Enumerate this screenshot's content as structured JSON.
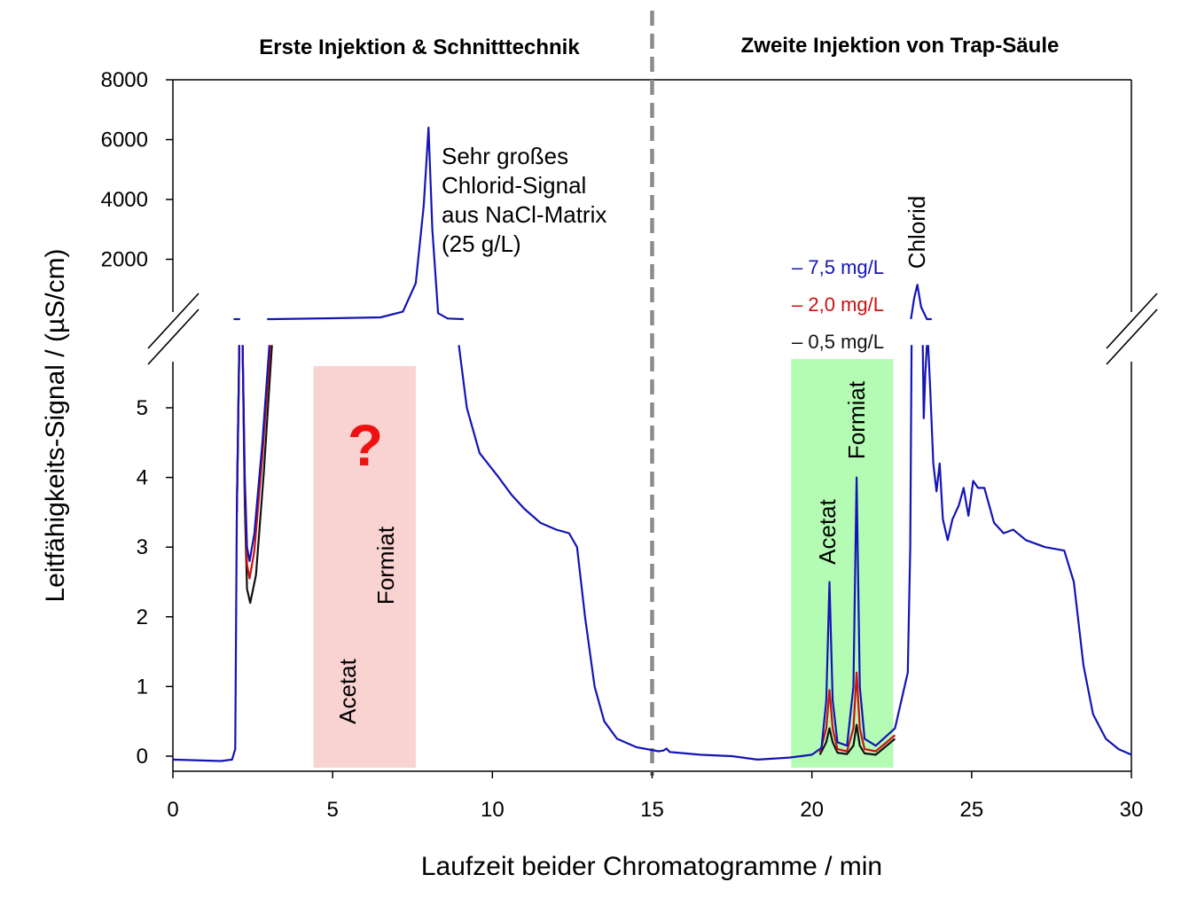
{
  "chart_data": {
    "type": "line",
    "title_left": "Erste Injektion & Schnitttechnik",
    "title_right": "Zweite Injektion von Trap-Säule",
    "xlabel": "Laufzeit beider Chromatogramme / min",
    "ylabel": "Leitfähigkeits-Signal / (µS/cm)",
    "xlim": [
      0,
      30
    ],
    "xticks": [
      "0",
      "5",
      "10",
      "15",
      "20",
      "25",
      "30"
    ],
    "ylim_lower": [
      -0.2,
      5.6
    ],
    "yticks_lower": [
      "0",
      "1",
      "2",
      "3",
      "4",
      "5"
    ],
    "ylim_upper": [
      0,
      8000
    ],
    "yticks_upper": [
      "2000",
      "4000",
      "6000",
      "8000"
    ],
    "divider_x": 15,
    "colors": {
      "blue": "#1414b4",
      "red": "#cc1111",
      "black": "#111111",
      "grey": "#8c8c8c",
      "pink": "#f9d2d2",
      "green": "#b4fcb4",
      "qmark": "#ee1111"
    },
    "regions": [
      {
        "name": "unknown-region",
        "x": [
          4.4,
          7.6
        ],
        "color": "#f9d2d2"
      },
      {
        "name": "analyte-region",
        "x": [
          19.35,
          22.55
        ],
        "color": "#b4fcb4"
      }
    ],
    "annotations": {
      "question_mark": "?",
      "acetat_left": "Acetat",
      "formiat_left": "Formiat",
      "acetat_right": "Acetat",
      "formiat_right": "Formiat",
      "chlorid": "Chlorid",
      "matrix_note": [
        "Sehr großes",
        "Chlorid-Signal",
        "aus NaCl-Matrix",
        "(25 g/L)"
      ]
    },
    "legend": [
      {
        "label": "– 7,5 mg/L",
        "color": "#1414b4"
      },
      {
        "label": "– 2,0 mg/L",
        "color": "#cc1111"
      },
      {
        "label": "– 0,5 mg/L",
        "color": "#111111"
      }
    ],
    "series": [
      {
        "name": "7,5 mg/L",
        "color": "#1414b4",
        "lower": [
          [
            [
              0,
              -0.05
            ],
            [
              1.5,
              -0.07
            ],
            [
              1.85,
              -0.05
            ],
            [
              1.95,
              0.1
            ],
            [
              2.0,
              3.5
            ],
            [
              2.08,
              5.9
            ]
          ],
          [
            [
              2.18,
              5.9
            ],
            [
              2.25,
              4.0
            ],
            [
              2.32,
              3.0
            ],
            [
              2.4,
              2.8
            ],
            [
              2.55,
              3.2
            ],
            [
              2.8,
              4.5
            ],
            [
              3.02,
              5.9
            ]
          ],
          [
            [
              8.95,
              5.9
            ],
            [
              9.2,
              5.0
            ],
            [
              9.6,
              4.35
            ],
            [
              10.2,
              4.0
            ],
            [
              10.6,
              3.75
            ],
            [
              11.0,
              3.55
            ],
            [
              11.5,
              3.35
            ],
            [
              12.0,
              3.25
            ],
            [
              12.4,
              3.2
            ],
            [
              12.65,
              3.0
            ],
            [
              12.9,
              2.0
            ],
            [
              13.2,
              1.0
            ],
            [
              13.5,
              0.5
            ],
            [
              13.9,
              0.25
            ],
            [
              14.5,
              0.13
            ],
            [
              15.2,
              0.07
            ],
            [
              15.35,
              0.08
            ],
            [
              15.45,
              0.11
            ],
            [
              15.55,
              0.06
            ],
            [
              16.5,
              0.02
            ],
            [
              17.5,
              0.0
            ],
            [
              18.3,
              -0.05
            ],
            [
              19.3,
              -0.02
            ],
            [
              20.0,
              0.02
            ],
            [
              20.3,
              0.12
            ],
            [
              20.45,
              0.8
            ],
            [
              20.55,
              2.5
            ],
            [
              20.65,
              0.8
            ],
            [
              20.8,
              0.2
            ],
            [
              21.1,
              0.15
            ],
            [
              21.3,
              1.0
            ],
            [
              21.4,
              4.0
            ],
            [
              21.5,
              1.0
            ],
            [
              21.65,
              0.25
            ],
            [
              22.0,
              0.15
            ],
            [
              22.6,
              0.4
            ],
            [
              22.8,
              0.8
            ],
            [
              23.0,
              1.2
            ],
            [
              23.08,
              3.0
            ],
            [
              23.12,
              5.9
            ]
          ],
          [
            [
              23.47,
              5.9
            ],
            [
              23.5,
              4.85
            ],
            [
              23.55,
              5.5
            ],
            [
              23.6,
              5.9
            ]
          ],
          [
            [
              23.64,
              5.9
            ],
            [
              23.7,
              5.3
            ],
            [
              23.8,
              4.2
            ],
            [
              23.9,
              3.8
            ],
            [
              24.0,
              4.2
            ],
            [
              24.1,
              3.4
            ],
            [
              24.25,
              3.1
            ],
            [
              24.4,
              3.4
            ],
            [
              24.6,
              3.6
            ],
            [
              24.75,
              3.85
            ],
            [
              24.9,
              3.45
            ],
            [
              25.05,
              3.95
            ],
            [
              25.2,
              3.85
            ],
            [
              25.4,
              3.85
            ],
            [
              25.7,
              3.35
            ],
            [
              26.0,
              3.2
            ],
            [
              26.3,
              3.25
            ],
            [
              26.7,
              3.1
            ],
            [
              27.3,
              3.0
            ],
            [
              27.9,
              2.95
            ],
            [
              28.2,
              2.5
            ],
            [
              28.5,
              1.3
            ],
            [
              28.8,
              0.6
            ],
            [
              29.2,
              0.25
            ],
            [
              29.6,
              0.1
            ],
            [
              30,
              0.02
            ]
          ]
        ],
        "upper": [
          [
            [
              1.9,
              0
            ],
            [
              2.1,
              0
            ]
          ],
          [
            [
              2.95,
              0
            ],
            [
              3.1,
              0
            ],
            [
              5,
              30
            ],
            [
              6.5,
              60
            ],
            [
              7.2,
              250
            ],
            [
              7.6,
              1200
            ],
            [
              7.85,
              3800
            ],
            [
              8.0,
              6400
            ],
            [
              8.12,
              3000
            ],
            [
              8.3,
              200
            ],
            [
              8.6,
              20
            ],
            [
              9.1,
              0
            ]
          ],
          [
            [
              23.1,
              0
            ],
            [
              23.2,
              700
            ],
            [
              23.3,
              1150
            ],
            [
              23.42,
              400
            ],
            [
              23.6,
              0
            ],
            [
              23.75,
              0
            ]
          ]
        ]
      },
      {
        "name": "2,0 mg/L",
        "color": "#cc1111",
        "lower": [
          [
            [
              2.0,
              3.5
            ],
            [
              2.08,
              5.9
            ]
          ],
          [
            [
              2.18,
              5.9
            ],
            [
              2.25,
              3.8
            ],
            [
              2.32,
              2.75
            ],
            [
              2.4,
              2.55
            ],
            [
              2.55,
              2.95
            ],
            [
              2.8,
              4.3
            ],
            [
              3.05,
              5.9
            ]
          ],
          [
            [
              20.25,
              0.05
            ],
            [
              20.45,
              0.4
            ],
            [
              20.55,
              0.95
            ],
            [
              20.65,
              0.4
            ],
            [
              20.8,
              0.1
            ],
            [
              21.1,
              0.07
            ],
            [
              21.3,
              0.4
            ],
            [
              21.4,
              1.2
            ],
            [
              21.5,
              0.4
            ],
            [
              21.65,
              0.1
            ],
            [
              22.0,
              0.07
            ],
            [
              22.6,
              0.3
            ]
          ]
        ]
      },
      {
        "name": "0,5 mg/L",
        "color": "#111111",
        "lower": [
          [
            [
              2.0,
              3.5
            ],
            [
              2.08,
              5.9
            ]
          ],
          [
            [
              2.18,
              5.9
            ],
            [
              2.25,
              3.6
            ],
            [
              2.32,
              2.4
            ],
            [
              2.42,
              2.2
            ],
            [
              2.6,
              2.6
            ],
            [
              2.85,
              4.1
            ],
            [
              3.1,
              5.9
            ]
          ],
          [
            [
              20.25,
              0.02
            ],
            [
              20.45,
              0.2
            ],
            [
              20.55,
              0.4
            ],
            [
              20.65,
              0.2
            ],
            [
              20.8,
              0.05
            ],
            [
              21.1,
              0.03
            ],
            [
              21.3,
              0.15
            ],
            [
              21.4,
              0.45
            ],
            [
              21.5,
              0.15
            ],
            [
              21.65,
              0.04
            ],
            [
              22.0,
              0.02
            ],
            [
              22.6,
              0.25
            ]
          ]
        ]
      }
    ]
  }
}
